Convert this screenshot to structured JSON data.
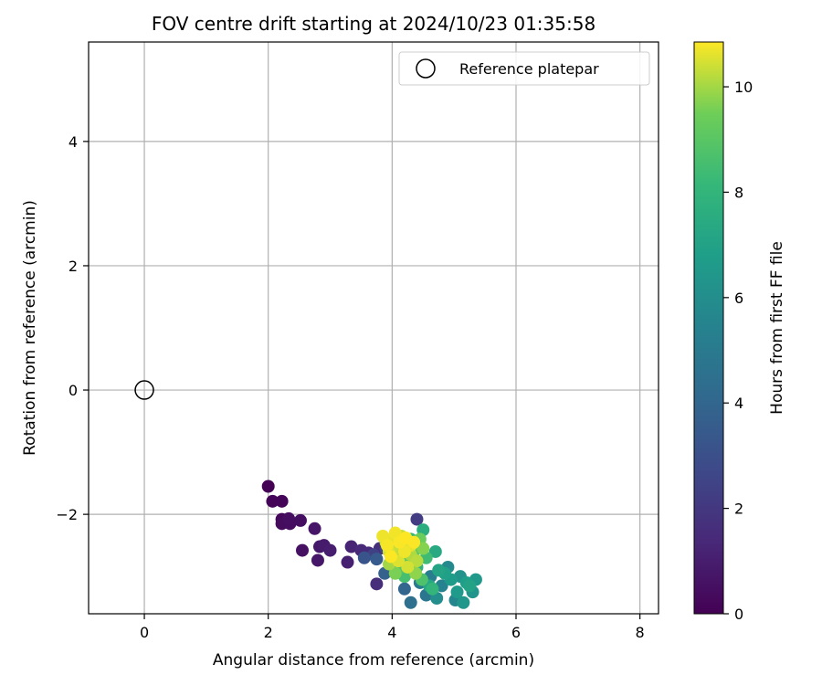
{
  "chart_data": {
    "type": "scatter",
    "title": "FOV centre drift starting at 2024/10/23 01:35:58",
    "xlabel": "Angular distance from reference (arcmin)",
    "ylabel": "Rotation from reference (arcmin)",
    "xlim": [
      -0.9,
      8.3
    ],
    "ylim": [
      -3.6,
      5.6
    ],
    "xticks": [
      0,
      2,
      4,
      6,
      8
    ],
    "yticks": [
      -2,
      0,
      2,
      4
    ],
    "grid": true,
    "legend": {
      "placement": "top-right",
      "entries": [
        "Reference platepar"
      ]
    },
    "reference": {
      "name": "Reference platepar",
      "x": 0,
      "y": 0
    },
    "colorbar": {
      "label": "Hours from first FF file",
      "colormap": "viridis",
      "range": [
        0,
        10.85
      ],
      "ticks": [
        0,
        2,
        4,
        6,
        8,
        10
      ]
    },
    "points": [
      {
        "x": 2.0,
        "y": -1.55,
        "c": 0.05
      },
      {
        "x": 2.07,
        "y": -1.79,
        "c": 0.1
      },
      {
        "x": 2.22,
        "y": -1.79,
        "c": 0.15
      },
      {
        "x": 2.22,
        "y": -2.08,
        "c": 0.2
      },
      {
        "x": 2.3,
        "y": -2.1,
        "c": 0.3
      },
      {
        "x": 2.22,
        "y": -2.15,
        "c": 0.35
      },
      {
        "x": 2.35,
        "y": -2.15,
        "c": 0.4
      },
      {
        "x": 2.33,
        "y": -2.07,
        "c": 0.45
      },
      {
        "x": 2.52,
        "y": -2.1,
        "c": 0.5
      },
      {
        "x": 2.55,
        "y": -2.58,
        "c": 0.55
      },
      {
        "x": 2.75,
        "y": -2.23,
        "c": 0.7
      },
      {
        "x": 2.8,
        "y": -2.74,
        "c": 0.75
      },
      {
        "x": 2.83,
        "y": -2.52,
        "c": 0.8
      },
      {
        "x": 2.9,
        "y": -2.5,
        "c": 0.9
      },
      {
        "x": 3.0,
        "y": -2.58,
        "c": 1.0
      },
      {
        "x": 3.28,
        "y": -2.77,
        "c": 1.1
      },
      {
        "x": 3.34,
        "y": -2.52,
        "c": 1.2
      },
      {
        "x": 3.5,
        "y": -2.58,
        "c": 1.4
      },
      {
        "x": 3.62,
        "y": -2.62,
        "c": 1.5
      },
      {
        "x": 3.75,
        "y": -3.12,
        "c": 1.6
      },
      {
        "x": 3.8,
        "y": -2.55,
        "c": 1.7
      },
      {
        "x": 4.4,
        "y": -2.08,
        "c": 2.2
      },
      {
        "x": 3.7,
        "y": -2.65,
        "c": 2.4
      },
      {
        "x": 3.9,
        "y": -2.55,
        "c": 2.6
      },
      {
        "x": 4.0,
        "y": -2.72,
        "c": 2.8
      },
      {
        "x": 3.55,
        "y": -2.7,
        "c": 3.2
      },
      {
        "x": 3.75,
        "y": -2.72,
        "c": 3.5
      },
      {
        "x": 3.88,
        "y": -2.95,
        "c": 3.8
      },
      {
        "x": 4.2,
        "y": -3.2,
        "c": 4.0
      },
      {
        "x": 4.05,
        "y": -2.8,
        "c": 4.2
      },
      {
        "x": 4.3,
        "y": -3.42,
        "c": 4.5
      },
      {
        "x": 4.55,
        "y": -3.3,
        "c": 4.8
      },
      {
        "x": 4.45,
        "y": -3.1,
        "c": 5.0
      },
      {
        "x": 4.62,
        "y": -3.0,
        "c": 5.2
      },
      {
        "x": 4.8,
        "y": -3.15,
        "c": 5.4
      },
      {
        "x": 5.02,
        "y": -3.38,
        "c": 5.6
      },
      {
        "x": 4.9,
        "y": -2.85,
        "c": 5.8
      },
      {
        "x": 4.72,
        "y": -3.35,
        "c": 6.0
      },
      {
        "x": 5.1,
        "y": -3.0,
        "c": 6.2
      },
      {
        "x": 5.3,
        "y": -3.25,
        "c": 6.3
      },
      {
        "x": 5.15,
        "y": -3.42,
        "c": 6.4
      },
      {
        "x": 5.35,
        "y": -3.05,
        "c": 6.5
      },
      {
        "x": 5.05,
        "y": -3.25,
        "c": 6.6
      },
      {
        "x": 4.95,
        "y": -3.05,
        "c": 6.7
      },
      {
        "x": 5.2,
        "y": -3.1,
        "c": 6.8
      },
      {
        "x": 4.85,
        "y": -2.95,
        "c": 6.9
      },
      {
        "x": 5.25,
        "y": -3.15,
        "c": 7.0
      },
      {
        "x": 4.75,
        "y": -2.9,
        "c": 7.1
      },
      {
        "x": 4.6,
        "y": -3.15,
        "c": 7.2
      },
      {
        "x": 4.7,
        "y": -2.6,
        "c": 7.4
      },
      {
        "x": 4.5,
        "y": -2.25,
        "c": 7.6
      },
      {
        "x": 4.4,
        "y": -2.85,
        "c": 7.8
      },
      {
        "x": 4.65,
        "y": -3.2,
        "c": 8.0
      },
      {
        "x": 4.3,
        "y": -2.4,
        "c": 8.2
      },
      {
        "x": 4.55,
        "y": -2.7,
        "c": 8.4
      },
      {
        "x": 4.2,
        "y": -3.0,
        "c": 8.6
      },
      {
        "x": 4.48,
        "y": -3.05,
        "c": 8.7
      },
      {
        "x": 4.15,
        "y": -2.85,
        "c": 8.9
      },
      {
        "x": 4.35,
        "y": -2.6,
        "c": 9.0
      },
      {
        "x": 4.25,
        "y": -2.75,
        "c": 9.2
      },
      {
        "x": 4.45,
        "y": -2.4,
        "c": 9.4
      },
      {
        "x": 4.1,
        "y": -2.65,
        "c": 9.5
      },
      {
        "x": 4.05,
        "y": -2.95,
        "c": 9.6
      },
      {
        "x": 4.5,
        "y": -2.55,
        "c": 9.7
      },
      {
        "x": 4.38,
        "y": -2.95,
        "c": 9.8
      },
      {
        "x": 4.2,
        "y": -2.5,
        "c": 9.9
      },
      {
        "x": 3.95,
        "y": -2.8,
        "c": 10.0
      },
      {
        "x": 4.3,
        "y": -2.65,
        "c": 10.1
      },
      {
        "x": 4.4,
        "y": -2.75,
        "c": 10.2
      },
      {
        "x": 4.05,
        "y": -2.55,
        "c": 10.3
      },
      {
        "x": 4.15,
        "y": -2.35,
        "c": 10.35
      },
      {
        "x": 3.9,
        "y": -2.45,
        "c": 10.4
      },
      {
        "x": 4.25,
        "y": -2.85,
        "c": 10.45
      },
      {
        "x": 3.95,
        "y": -2.6,
        "c": 10.5
      },
      {
        "x": 4.1,
        "y": -2.75,
        "c": 10.55
      },
      {
        "x": 4.3,
        "y": -2.5,
        "c": 10.6
      },
      {
        "x": 4.0,
        "y": -2.4,
        "c": 10.65
      },
      {
        "x": 3.85,
        "y": -2.35,
        "c": 10.7
      },
      {
        "x": 4.2,
        "y": -2.6,
        "c": 10.72
      },
      {
        "x": 4.05,
        "y": -2.3,
        "c": 10.75
      },
      {
        "x": 3.92,
        "y": -2.5,
        "c": 10.78
      },
      {
        "x": 4.12,
        "y": -2.45,
        "c": 10.8
      },
      {
        "x": 4.35,
        "y": -2.45,
        "c": 10.82
      },
      {
        "x": 3.98,
        "y": -2.68,
        "c": 10.84
      },
      {
        "x": 4.22,
        "y": -2.38,
        "c": 10.85
      }
    ]
  }
}
